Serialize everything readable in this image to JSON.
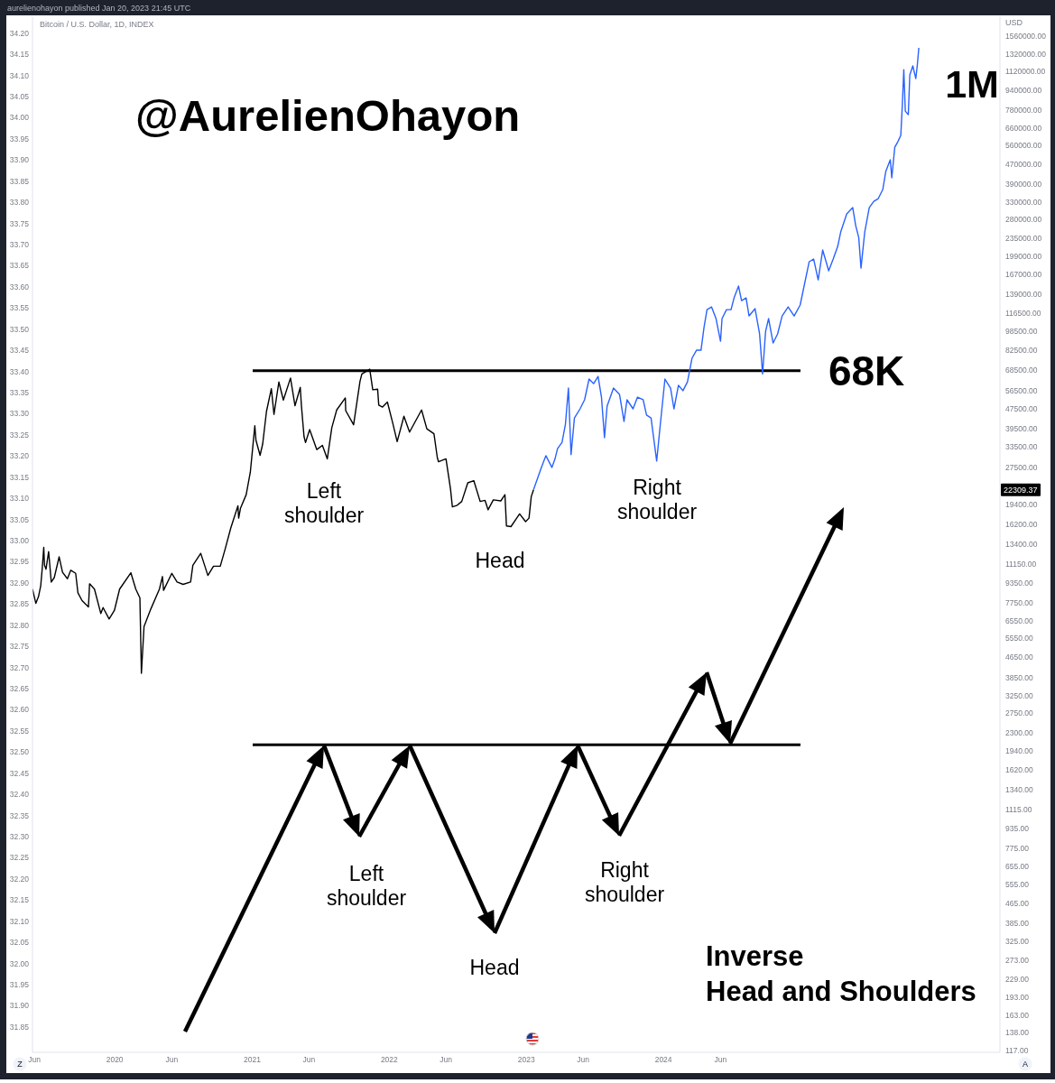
{
  "chart_data": {
    "type": "line",
    "subtitle": "Bitcoin / U.S. Dollar, 1D, INDEX",
    "ylabel": "USD",
    "log": "y",
    "xlim": [
      "2019-05-27",
      "2026-06-15"
    ],
    "xticks": [
      {
        "value": "2019-06-01",
        "label": "Jun"
      },
      {
        "value": "2020-01-01",
        "label": "2020"
      },
      {
        "value": "2020-06-01",
        "label": "Jun"
      },
      {
        "value": "2021-01-01",
        "label": "2021"
      },
      {
        "value": "2021-06-01",
        "label": "Jun"
      },
      {
        "value": "2022-01-01",
        "label": "2022"
      },
      {
        "value": "2022-06-01",
        "label": "Jun"
      },
      {
        "value": "2023-01-01",
        "label": "2023"
      },
      {
        "value": "2023-06-01",
        "label": "Jun"
      },
      {
        "value": "2024-01-01",
        "label": "2024"
      },
      {
        "value": "2024-06-01",
        "label": "Jun"
      }
    ],
    "ylim": [
      115,
      1880000
    ],
    "yticks": [
      {
        "value": 117,
        "label": "117.00"
      },
      {
        "value": 138,
        "label": "138.00"
      },
      {
        "value": 163,
        "label": "163.00"
      },
      {
        "value": 193,
        "label": "193.00"
      },
      {
        "value": 229,
        "label": "229.00"
      },
      {
        "value": 273,
        "label": "273.00"
      },
      {
        "value": 325,
        "label": "325.00"
      },
      {
        "value": 385,
        "label": "385.00"
      },
      {
        "value": 465,
        "label": "465.00"
      },
      {
        "value": 555,
        "label": "555.00"
      },
      {
        "value": 655,
        "label": "655.00"
      },
      {
        "value": 775,
        "label": "775.00"
      },
      {
        "value": 935,
        "label": "935.00"
      },
      {
        "value": 1115,
        "label": "1115.00"
      },
      {
        "value": 1340,
        "label": "1340.00"
      },
      {
        "value": 1620,
        "label": "1620.00"
      },
      {
        "value": 1940,
        "label": "1940.00"
      },
      {
        "value": 2300,
        "label": "2300.00"
      },
      {
        "value": 2750,
        "label": "2750.00"
      },
      {
        "value": 3250,
        "label": "3250.00"
      },
      {
        "value": 3850,
        "label": "3850.00"
      },
      {
        "value": 4650,
        "label": "4650.00"
      },
      {
        "value": 5550,
        "label": "5550.00"
      },
      {
        "value": 6550,
        "label": "6550.00"
      },
      {
        "value": 7750,
        "label": "7750.00"
      },
      {
        "value": 9350,
        "label": "9350.00"
      },
      {
        "value": 11150,
        "label": "11150.00"
      },
      {
        "value": 13400,
        "label": "13400.00"
      },
      {
        "value": 16200,
        "label": "16200.00"
      },
      {
        "value": 19400,
        "label": "19400.00"
      },
      {
        "value": 27500,
        "label": "27500.00"
      },
      {
        "value": 33500,
        "label": "33500.00"
      },
      {
        "value": 39500,
        "label": "39500.00"
      },
      {
        "value": 47500,
        "label": "47500.00"
      },
      {
        "value": 56500,
        "label": "56500.00"
      },
      {
        "value": 68500,
        "label": "68500.00"
      },
      {
        "value": 82500,
        "label": "82500.00"
      },
      {
        "value": 98500,
        "label": "98500.00"
      },
      {
        "value": 116500,
        "label": "116500.00"
      },
      {
        "value": 139000,
        "label": "139000.00"
      },
      {
        "value": 167000,
        "label": "167000.00"
      },
      {
        "value": 199000,
        "label": "199000.00"
      },
      {
        "value": 235000,
        "label": "235000.00"
      },
      {
        "value": 280000,
        "label": "280000.00"
      },
      {
        "value": 330000,
        "label": "330000.00"
      },
      {
        "value": 390000,
        "label": "390000.00"
      },
      {
        "value": 470000,
        "label": "470000.00"
      },
      {
        "value": 560000,
        "label": "560000.00"
      },
      {
        "value": 660000,
        "label": "660000.00"
      },
      {
        "value": 780000,
        "label": "780000.00"
      },
      {
        "value": 940000,
        "label": "940000.00"
      },
      {
        "value": 1120000,
        "label": "1120000.00"
      },
      {
        "value": 1320000,
        "label": "1320000.00"
      },
      {
        "value": 1560000,
        "label": "1560000.00"
      }
    ],
    "y2lim": [
      31.79,
      34.24
    ],
    "y2ticks": [
      {
        "value": 31.85,
        "label": "31.85"
      },
      {
        "value": 31.9,
        "label": "31.90"
      },
      {
        "value": 31.95,
        "label": "31.95"
      },
      {
        "value": 32,
        "label": "32.00"
      },
      {
        "value": 32.05,
        "label": "32.05"
      },
      {
        "value": 32.1,
        "label": "32.10"
      },
      {
        "value": 32.15,
        "label": "32.15"
      },
      {
        "value": 32.2,
        "label": "32.20"
      },
      {
        "value": 32.25,
        "label": "32.25"
      },
      {
        "value": 32.3,
        "label": "32.30"
      },
      {
        "value": 32.35,
        "label": "32.35"
      },
      {
        "value": 32.4,
        "label": "32.40"
      },
      {
        "value": 32.45,
        "label": "32.45"
      },
      {
        "value": 32.5,
        "label": "32.50"
      },
      {
        "value": 32.55,
        "label": "32.55"
      },
      {
        "value": 32.6,
        "label": "32.60"
      },
      {
        "value": 32.65,
        "label": "32.65"
      },
      {
        "value": 32.7,
        "label": "32.70"
      },
      {
        "value": 32.75,
        "label": "32.75"
      },
      {
        "value": 32.8,
        "label": "32.80"
      },
      {
        "value": 32.85,
        "label": "32.85"
      },
      {
        "value": 32.9,
        "label": "32.90"
      },
      {
        "value": 32.95,
        "label": "32.95"
      },
      {
        "value": 33,
        "label": "33.00"
      },
      {
        "value": 33.05,
        "label": "33.05"
      },
      {
        "value": 33.1,
        "label": "33.10"
      },
      {
        "value": 33.15,
        "label": "33.15"
      },
      {
        "value": 33.2,
        "label": "33.20"
      },
      {
        "value": 33.25,
        "label": "33.25"
      },
      {
        "value": 33.3,
        "label": "33.30"
      },
      {
        "value": 33.35,
        "label": "33.35"
      },
      {
        "value": 33.4,
        "label": "33.40"
      },
      {
        "value": 33.45,
        "label": "33.45"
      },
      {
        "value": 33.5,
        "label": "33.50"
      },
      {
        "value": 33.55,
        "label": "33.55"
      },
      {
        "value": 33.6,
        "label": "33.60"
      },
      {
        "value": 33.65,
        "label": "33.65"
      },
      {
        "value": 33.7,
        "label": "33.70"
      },
      {
        "value": 33.75,
        "label": "33.75"
      },
      {
        "value": 33.8,
        "label": "33.80"
      },
      {
        "value": 33.85,
        "label": "33.85"
      },
      {
        "value": 33.9,
        "label": "33.90"
      },
      {
        "value": 33.95,
        "label": "33.95"
      },
      {
        "value": 34,
        "label": "34.00"
      },
      {
        "value": 34.05,
        "label": "34.05"
      },
      {
        "value": 34.1,
        "label": "34.10"
      },
      {
        "value": 34.15,
        "label": "34.15"
      },
      {
        "value": 34.2,
        "label": "34.20"
      }
    ],
    "series": [
      {
        "color": "#000000",
        "x": [
          "2019-05-27",
          "2019-06-05",
          "2019-06-12",
          "2019-06-18",
          "2019-06-22",
          "2019-06-26",
          "2019-06-28",
          "2019-07-02",
          "2019-07-09",
          "2019-07-16",
          "2019-07-24",
          "2019-08-06",
          "2019-08-15",
          "2019-08-28",
          "2019-09-06",
          "2019-09-19",
          "2019-09-25",
          "2019-10-06",
          "2019-10-23",
          "2019-10-26",
          "2019-11-08",
          "2019-11-25",
          "2019-12-01",
          "2019-12-17",
          "2019-12-31",
          "2020-01-14",
          "2020-02-13",
          "2020-02-26",
          "2020-03-08",
          "2020-03-12",
          "2020-03-19",
          "2020-04-06",
          "2020-04-29",
          "2020-05-07",
          "2020-05-10",
          "2020-06-01",
          "2020-06-15",
          "2020-07-01",
          "2020-07-21",
          "2020-07-27",
          "2020-08-17",
          "2020-09-05",
          "2020-09-20",
          "2020-10-08",
          "2020-10-21",
          "2020-11-05",
          "2020-11-24",
          "2020-11-26",
          "2020-12-01",
          "2020-12-16",
          "2020-12-27",
          "2021-01-08",
          "2021-01-11",
          "2021-01-22",
          "2021-01-29",
          "2021-02-08",
          "2021-02-21",
          "2021-02-28",
          "2021-03-13",
          "2021-03-25",
          "2021-04-13",
          "2021-04-25",
          "2021-05-09",
          "2021-05-12",
          "2021-05-19",
          "2021-05-23",
          "2021-06-03",
          "2021-06-22",
          "2021-07-07",
          "2021-07-20",
          "2021-08-01",
          "2021-08-14",
          "2021-09-06",
          "2021-09-07",
          "2021-09-28",
          "2021-10-15",
          "2021-10-20",
          "2021-11-10",
          "2021-11-18",
          "2021-12-01",
          "2021-12-04",
          "2021-12-14",
          "2021-12-27",
          "2022-01-10",
          "2022-01-22",
          "2022-02-09",
          "2022-02-24",
          "2022-03-28",
          "2022-04-11",
          "2022-04-30",
          "2022-05-09",
          "2022-05-12",
          "2022-06-01",
          "2022-06-13",
          "2022-06-18",
          "2022-07-01",
          "2022-07-13",
          "2022-07-29",
          "2022-08-14",
          "2022-08-31",
          "2022-09-13",
          "2022-09-21",
          "2022-10-05",
          "2022-10-25",
          "2022-11-05",
          "2022-11-09",
          "2022-11-21",
          "2022-12-05",
          "2022-12-14",
          "2022-12-30",
          "2023-01-08",
          "2023-01-14",
          "2023-01-20"
        ],
        "values": [
          8800,
          7700,
          8200,
          9100,
          10700,
          13000,
          11000,
          10600,
          12500,
          9400,
          9800,
          11900,
          10300,
          9700,
          10500,
          10200,
          8500,
          7900,
          7450,
          9250,
          8800,
          7000,
          7400,
          6650,
          7200,
          8800,
          10250,
          8800,
          8100,
          4000,
          6200,
          7300,
          8800,
          9900,
          8700,
          10200,
          9400,
          9200,
          9400,
          11000,
          12300,
          10000,
          10900,
          10900,
          12800,
          15600,
          19200,
          17100,
          18800,
          21300,
          26300,
          40600,
          35500,
          30800,
          34300,
          46400,
          57500,
          45200,
          61200,
          51700,
          63500,
          49000,
          58200,
          49200,
          36700,
          34700,
          39200,
          32500,
          33800,
          29800,
          39900,
          47100,
          52700,
          46800,
          41000,
          61500,
          66000,
          69000,
          56900,
          57200,
          49300,
          48400,
          50700,
          41800,
          35000,
          44400,
          38300,
          47100,
          39500,
          37700,
          30100,
          29000,
          29800,
          22500,
          19000,
          19300,
          20000,
          23800,
          24300,
          20000,
          20200,
          18500,
          20300,
          20100,
          21300,
          15900,
          15800,
          17000,
          17800,
          16550,
          17100,
          20900,
          22300
        ]
      },
      {
        "color": "#2962ff",
        "x": [
          "2023-01-20",
          "2023-02-10",
          "2023-02-22",
          "2023-03-10",
          "2023-03-18",
          "2023-03-25",
          "2023-04-06",
          "2023-04-15",
          "2023-04-23",
          "2023-04-30",
          "2023-05-09",
          "2023-05-24",
          "2023-06-05",
          "2023-06-17",
          "2023-06-29",
          "2023-07-11",
          "2023-07-20",
          "2023-07-28",
          "2023-08-04",
          "2023-08-21",
          "2023-09-06",
          "2023-09-18",
          "2023-09-26",
          "2023-10-12",
          "2023-10-24",
          "2023-11-08",
          "2023-11-17",
          "2023-11-29",
          "2023-12-14",
          "2023-12-23",
          "2024-01-05",
          "2024-01-20",
          "2024-01-29",
          "2024-02-10",
          "2024-02-22",
          "2024-03-05",
          "2024-03-17",
          "2024-03-29",
          "2024-04-10",
          "2024-04-18",
          "2024-04-26",
          "2024-05-08",
          "2024-05-20",
          "2024-06-01",
          "2024-06-05",
          "2024-06-17",
          "2024-06-29",
          "2024-07-07",
          "2024-07-19",
          "2024-07-27",
          "2024-08-08",
          "2024-08-16",
          "2024-09-01",
          "2024-09-13",
          "2024-09-21",
          "2024-09-29",
          "2024-10-07",
          "2024-10-19",
          "2024-10-31",
          "2024-11-12",
          "2024-11-28",
          "2024-12-14",
          "2024-12-30",
          "2025-01-07",
          "2025-01-23",
          "2025-02-04",
          "2025-02-16",
          "2025-02-28",
          "2025-03-16",
          "2025-03-28",
          "2025-04-09",
          "2025-04-17",
          "2025-05-03",
          "2025-05-19",
          "2025-05-27",
          "2025-06-04",
          "2025-06-10",
          "2025-06-20",
          "2025-07-02",
          "2025-07-14",
          "2025-07-26",
          "2025-08-07",
          "2025-08-15",
          "2025-08-27",
          "2025-08-31",
          "2025-09-08",
          "2025-09-16",
          "2025-09-24",
          "2025-09-28",
          "2025-10-02",
          "2025-10-06",
          "2025-10-14",
          "2025-10-18",
          "2025-10-26",
          "2025-11-03",
          "2025-11-07",
          "2025-11-11"
        ],
        "values": [
          22300,
          27500,
          30700,
          27500,
          29700,
          32800,
          34800,
          41200,
          57800,
          31000,
          43700,
          47600,
          51800,
          62900,
          60300,
          64500,
          53100,
          36300,
          48800,
          57800,
          54500,
          42300,
          51800,
          47600,
          53100,
          51800,
          44900,
          43700,
          29200,
          40200,
          62900,
          57800,
          47600,
          59300,
          56400,
          61300,
          76400,
          82400,
          82400,
          102000,
          120500,
          123600,
          110800,
          89700,
          110800,
          120500,
          120500,
          134500,
          150200,
          131200,
          134500,
          113600,
          121600,
          96000,
          66000,
          98400,
          110800,
          88200,
          96000,
          113600,
          123600,
          113600,
          125800,
          144000,
          188700,
          193500,
          159300,
          210600,
          173400,
          193500,
          217800,
          249400,
          295200,
          313200,
          264500,
          237000,
          177800,
          249400,
          313200,
          332300,
          340900,
          370900,
          439200,
          490200,
          414000,
          551600,
          580300,
          615900,
          813700,
          1141000,
          773500,
          747800,
          1085000,
          1181000,
          1049000,
          1191000,
          1398000
        ]
      }
    ],
    "ref_lines": [
      {
        "axis": "y",
        "value": 68000,
        "label": "68K",
        "color": "#000000"
      },
      {
        "axis": "y",
        "value": 2050,
        "color": "#000000"
      }
    ],
    "annotations": [
      "@AurelienOhayon",
      "1M",
      "Left\nshoulder",
      "Head",
      "Right\nshoulder",
      "Left\nshoulder",
      "Head",
      "Right\nshoulder",
      "Inverse\nHead and Shoulders",
      "aurelienohayon published Jan 20, 2023 21:45 UTC",
      "Z",
      "A",
      {
        "text": "22309.37",
        "y": 22309.37
      }
    ]
  }
}
